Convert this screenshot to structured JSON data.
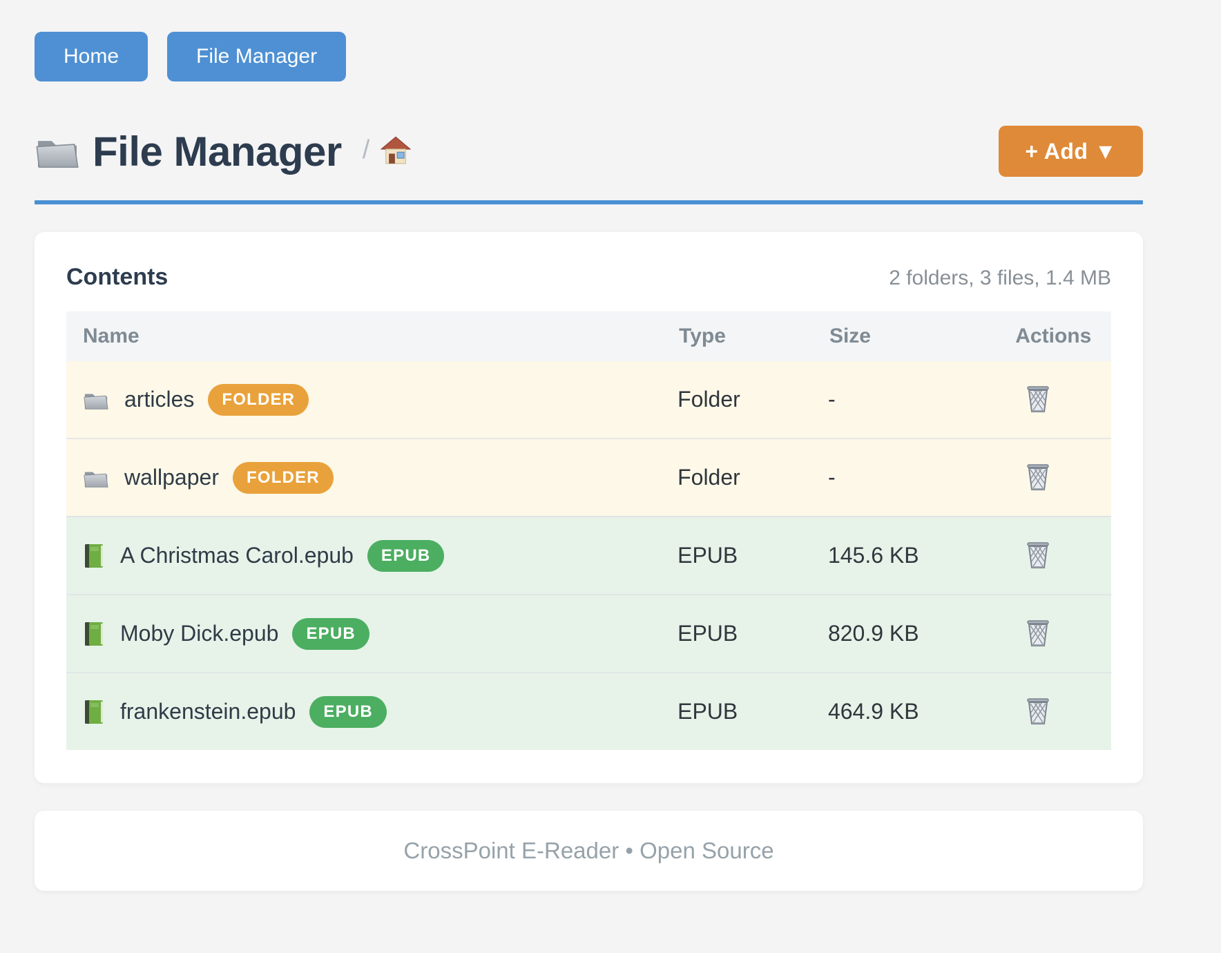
{
  "nav": {
    "buttons": [
      {
        "label": "Home"
      },
      {
        "label": "File Manager"
      }
    ]
  },
  "header": {
    "title": "File Manager",
    "title_icon": "folder-icon",
    "breadcrumb_separator": "/",
    "breadcrumb_icon": "home-icon",
    "add_button_label": "+ Add ▼"
  },
  "content": {
    "card_title": "Contents",
    "summary": "2 folders, 3 files, 1.4 MB",
    "columns": [
      "Name",
      "Type",
      "Size",
      "Actions"
    ],
    "rows": [
      {
        "name": "articles",
        "badge": "FOLDER",
        "type": "Folder",
        "size": "-",
        "kind": "folder",
        "icon": "folder-icon",
        "action_icon": "trash-icon"
      },
      {
        "name": "wallpaper",
        "badge": "FOLDER",
        "type": "Folder",
        "size": "-",
        "kind": "folder",
        "icon": "folder-icon",
        "action_icon": "trash-icon"
      },
      {
        "name": "A Christmas Carol.epub",
        "badge": "EPUB",
        "type": "EPUB",
        "size": "145.6 KB",
        "kind": "file",
        "icon": "green-book-icon",
        "action_icon": "trash-icon"
      },
      {
        "name": "Moby Dick.epub",
        "badge": "EPUB",
        "type": "EPUB",
        "size": "820.9 KB",
        "kind": "file",
        "icon": "green-book-icon",
        "action_icon": "trash-icon"
      },
      {
        "name": "frankenstein.epub",
        "badge": "EPUB",
        "type": "EPUB",
        "size": "464.9 KB",
        "kind": "file",
        "icon": "green-book-icon",
        "action_icon": "trash-icon"
      }
    ]
  },
  "footer": {
    "text": "CrossPoint E-Reader • Open Source"
  },
  "colors": {
    "primary_blue": "#4e90d3",
    "divider_blue": "#4a90d2",
    "accent_orange": "#df8a38",
    "badge_orange": "#e9a23b",
    "badge_green": "#4cae61",
    "folder_row_bg": "#fdf8e8",
    "file_row_bg": "#e7f3e9",
    "title_text": "#2d3c4e"
  }
}
